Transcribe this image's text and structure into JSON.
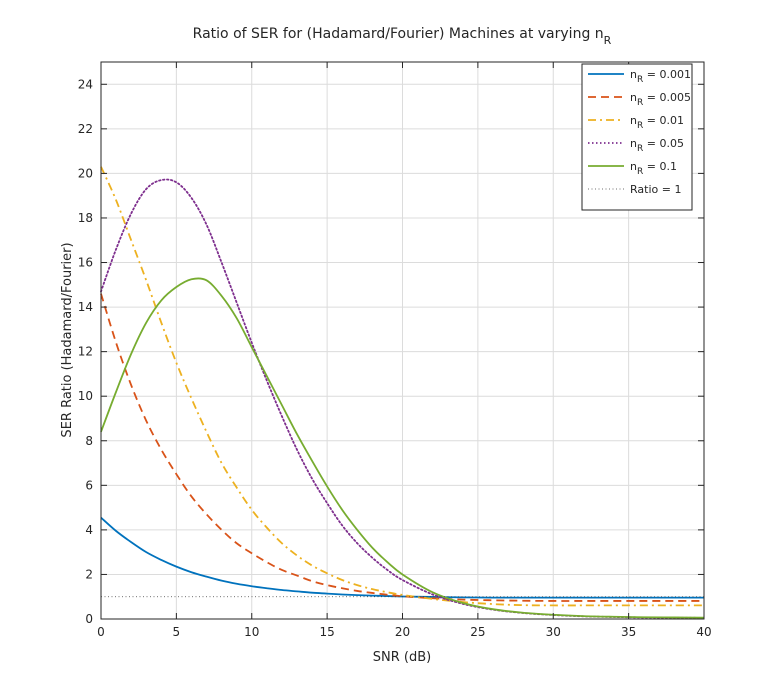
{
  "chart_data": {
    "type": "line",
    "title": "Ratio of SER for (Hadamard/Fourier) Machines at varying n",
    "title_subscript": "R",
    "xlabel": "SNR (dB)",
    "ylabel": "SER Ratio (Hadamard/Fourier)",
    "xlim": [
      0,
      40
    ],
    "ylim": [
      0,
      25
    ],
    "xticks": [
      0,
      5,
      10,
      15,
      20,
      25,
      30,
      35,
      40
    ],
    "yticks": [
      0,
      2,
      4,
      6,
      8,
      10,
      12,
      14,
      16,
      18,
      20,
      22,
      24
    ],
    "grid": true,
    "legend_position": "top-right",
    "series": [
      {
        "name": "n_R = 0.001",
        "legend_prefix": "n",
        "legend_sub": "R",
        "legend_suffix": " = 0.001",
        "color": "#0072BD",
        "dash": "solid",
        "x": [
          0,
          1,
          2,
          3,
          4,
          5,
          6,
          7,
          8,
          9,
          10,
          11,
          12,
          13,
          14,
          15,
          16,
          17,
          18,
          19,
          20,
          22,
          24,
          26,
          28,
          30,
          32,
          34,
          36,
          38,
          40
        ],
        "y": [
          4.55,
          3.95,
          3.45,
          3.0,
          2.65,
          2.35,
          2.1,
          1.9,
          1.72,
          1.58,
          1.47,
          1.38,
          1.3,
          1.24,
          1.18,
          1.14,
          1.1,
          1.07,
          1.05,
          1.03,
          1.01,
          0.99,
          0.97,
          0.96,
          0.96,
          0.96,
          0.96,
          0.96,
          0.96,
          0.96,
          0.96
        ]
      },
      {
        "name": "n_R = 0.005",
        "legend_prefix": "n",
        "legend_sub": "R",
        "legend_suffix": " = 0.005",
        "color": "#D95319",
        "dash": "dashed",
        "x": [
          0,
          1,
          2,
          3,
          4,
          5,
          6,
          7,
          8,
          9,
          10,
          11,
          12,
          13,
          14,
          15,
          16,
          17,
          18,
          19,
          20,
          22,
          24,
          26,
          28,
          30,
          32,
          34,
          36,
          38,
          40
        ],
        "y": [
          14.6,
          12.4,
          10.5,
          8.9,
          7.6,
          6.5,
          5.5,
          4.7,
          4.0,
          3.4,
          2.95,
          2.55,
          2.2,
          1.95,
          1.7,
          1.52,
          1.38,
          1.26,
          1.17,
          1.09,
          1.02,
          0.93,
          0.87,
          0.84,
          0.82,
          0.81,
          0.81,
          0.81,
          0.81,
          0.81,
          0.81
        ]
      },
      {
        "name": "n_R = 0.01",
        "legend_prefix": "n",
        "legend_sub": "R",
        "legend_suffix": " = 0.01",
        "color": "#EDB120",
        "dash": "dashdot",
        "x": [
          0,
          1,
          2,
          3,
          4,
          5,
          6,
          7,
          8,
          9,
          10,
          11,
          12,
          13,
          14,
          15,
          16,
          17,
          18,
          19,
          20,
          22,
          24,
          26,
          28,
          30,
          32,
          34,
          36,
          38,
          40
        ],
        "y": [
          20.3,
          18.8,
          17.0,
          15.2,
          13.3,
          11.5,
          9.9,
          8.4,
          7.0,
          5.9,
          4.9,
          4.1,
          3.4,
          2.85,
          2.4,
          2.05,
          1.75,
          1.52,
          1.34,
          1.2,
          1.08,
          0.9,
          0.76,
          0.67,
          0.62,
          0.61,
          0.61,
          0.61,
          0.61,
          0.61,
          0.61
        ]
      },
      {
        "name": "n_R = 0.05",
        "legend_prefix": "n",
        "legend_sub": "R",
        "legend_suffix": " = 0.05",
        "color": "#7E2F8E",
        "dash": "dotted",
        "x": [
          0,
          1,
          2,
          3,
          4,
          5,
          6,
          7,
          8,
          9,
          10,
          11,
          12,
          13,
          14,
          15,
          16,
          17,
          18,
          19,
          20,
          22,
          24,
          26,
          28,
          30,
          32,
          34,
          36,
          38,
          40
        ],
        "y": [
          14.7,
          16.6,
          18.2,
          19.3,
          19.7,
          19.6,
          18.9,
          17.7,
          16.0,
          14.2,
          12.4,
          10.7,
          9.1,
          7.6,
          6.3,
          5.2,
          4.2,
          3.4,
          2.75,
          2.2,
          1.75,
          1.1,
          0.68,
          0.42,
          0.27,
          0.18,
          0.12,
          0.09,
          0.07,
          0.06,
          0.05
        ]
      },
      {
        "name": "n_R = 0.1",
        "legend_prefix": "n",
        "legend_sub": "R",
        "legend_suffix": " = 0.1",
        "color": "#77AC30",
        "dash": "solid",
        "x": [
          0,
          1,
          2,
          3,
          4,
          5,
          6,
          7,
          8,
          9,
          10,
          11,
          12,
          13,
          14,
          15,
          16,
          17,
          18,
          19,
          20,
          22,
          24,
          26,
          28,
          30,
          32,
          34,
          36,
          38,
          40
        ],
        "y": [
          8.4,
          10.2,
          11.9,
          13.3,
          14.3,
          14.9,
          15.25,
          15.2,
          14.5,
          13.5,
          12.2,
          10.9,
          9.6,
          8.3,
          7.1,
          5.95,
          4.9,
          4.0,
          3.2,
          2.55,
          2.0,
          1.2,
          0.72,
          0.44,
          0.28,
          0.19,
          0.13,
          0.1,
          0.08,
          0.07,
          0.06
        ]
      },
      {
        "name": "Ratio = 1",
        "legend_prefix": "Ratio = 1",
        "legend_sub": "",
        "legend_suffix": "",
        "color": "#404040",
        "dash": "finedot",
        "thin": true,
        "x": [
          0,
          40
        ],
        "y": [
          1,
          1
        ]
      }
    ]
  }
}
